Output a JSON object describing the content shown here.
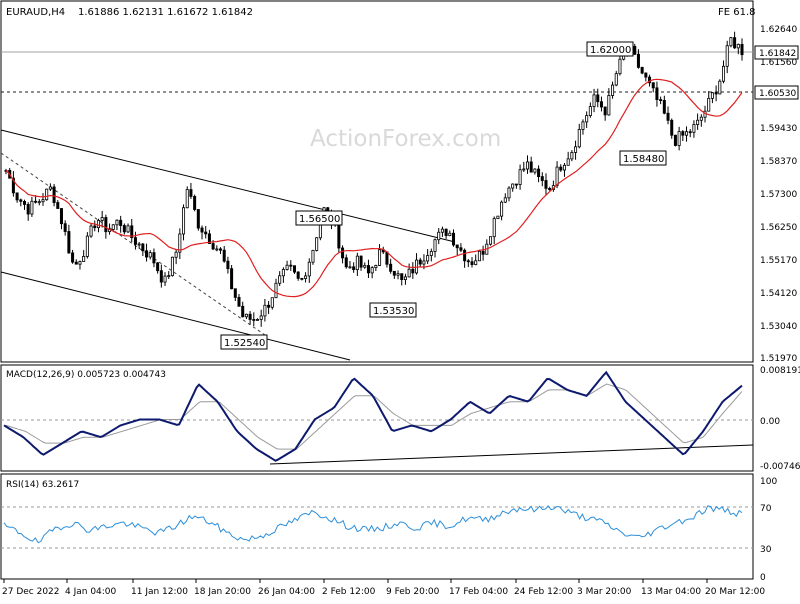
{
  "header": {
    "symbol": "EURAUD,H4",
    "ohlc": "1.61886 1.62131 1.61672 1.61842",
    "fe_label": "FE 61.8"
  },
  "watermark": "ActionForex.com",
  "chart_data": [
    {
      "type": "candlestick",
      "title": "EURAUD,H4",
      "ylim": [
        1.5148,
        1.6306
      ],
      "y_ticks": [
        "1.62640",
        "1.61560",
        "1.60530",
        "1.59430",
        "1.58370",
        "1.57300",
        "1.56250",
        "1.55170",
        "1.54120",
        "1.53040",
        "1.51970"
      ],
      "current_price": "1.61842",
      "horizontal_level": "1.60530",
      "annotations": [
        {
          "text": "1.62000",
          "value": 1.62
        },
        {
          "text": "1.56500",
          "value": 1.565
        },
        {
          "text": "1.53530",
          "value": 1.5353
        },
        {
          "text": "1.52540",
          "value": 1.5254
        },
        {
          "text": "1.58480",
          "value": 1.5848
        }
      ],
      "grid": false,
      "moving_average": {
        "color": "#e02020"
      },
      "close_path": [
        1.578,
        1.569,
        1.565,
        1.568,
        1.572,
        1.56,
        1.545,
        1.552,
        1.562,
        1.558,
        1.561,
        1.556,
        1.552,
        1.548,
        1.54,
        1.55,
        1.572,
        1.56,
        1.555,
        1.55,
        1.538,
        1.528,
        1.528,
        1.532,
        1.54,
        1.545,
        1.54,
        1.55,
        1.565,
        1.56,
        1.545,
        1.547,
        1.543,
        1.55,
        1.546,
        1.54,
        1.545,
        1.55,
        1.555,
        1.558,
        1.552,
        1.547,
        1.55,
        1.56,
        1.57,
        1.575,
        1.58,
        1.575,
        1.572,
        1.58,
        1.585,
        1.595,
        1.602,
        1.598,
        1.612,
        1.619,
        1.612,
        1.605,
        1.598,
        1.588,
        1.59,
        1.593,
        1.6,
        1.608,
        1.622,
        1.6184
      ]
    },
    {
      "type": "line",
      "title": "MACD(12,26,9) 0.005723 0.004743",
      "ylim": [
        -0.0082,
        0.0087
      ],
      "y_ticks": [
        "0.008191",
        "0.00",
        "-0.007466"
      ],
      "macd_path": [
        -0.001,
        -0.003,
        -0.006,
        -0.004,
        -0.002,
        -0.003,
        -0.001,
        0.0,
        0.0,
        -0.001,
        0.006,
        0.003,
        -0.002,
        -0.005,
        -0.007,
        -0.005,
        0.0,
        0.002,
        0.007,
        0.004,
        -0.002,
        -0.001,
        -0.002,
        0.0,
        0.003,
        0.001,
        0.004,
        0.003,
        0.007,
        0.005,
        0.004,
        0.008,
        0.003,
        0.0,
        -0.003,
        -0.006,
        -0.002,
        0.003,
        0.005723
      ],
      "signal_path": [
        -0.001,
        -0.002,
        -0.004,
        -0.004,
        -0.003,
        -0.003,
        -0.002,
        -0.001,
        0.0,
        0.0,
        0.003,
        0.003,
        0.0,
        -0.003,
        -0.005,
        -0.005,
        -0.002,
        0.001,
        0.004,
        0.004,
        0.001,
        -0.001,
        -0.001,
        -0.001,
        0.001,
        0.002,
        0.003,
        0.003,
        0.005,
        0.005,
        0.004,
        0.006,
        0.005,
        0.002,
        -0.001,
        -0.004,
        -0.003,
        0.001,
        0.004743
      ]
    },
    {
      "type": "line",
      "title": "RSI(14) 63.2617",
      "ylim": [
        0,
        100
      ],
      "y_ticks": [
        "100",
        "70",
        "30",
        "0"
      ],
      "rsi_path": [
        52,
        45,
        35,
        50,
        55,
        48,
        52,
        55,
        50,
        45,
        52,
        62,
        56,
        45,
        38,
        42,
        50,
        58,
        66,
        60,
        52,
        48,
        50,
        55,
        50,
        55,
        52,
        60,
        58,
        65,
        70,
        68,
        72,
        65,
        60,
        55,
        45,
        40,
        48,
        55,
        60,
        70,
        68,
        63.2617
      ],
      "current_value": "63.2617"
    }
  ],
  "x_axis": {
    "tick_labels": [
      "27 Dec 2022",
      "4 Jan 04:00",
      "11 Jan 12:00",
      "18 Jan 20:00",
      "26 Jan 04:00",
      "2 Feb 12:00",
      "9 Feb 20:00",
      "17 Feb 04:00",
      "24 Feb 12:00",
      "3 Mar 20:00",
      "13 Mar 04:00",
      "20 Mar 12:00"
    ]
  },
  "colors": {
    "candle_up": "#ffffff",
    "candle_border": "#000000",
    "macd_line": "#0d1a6e",
    "signal_line": "#9a9a9a",
    "rsi_line": "#2d8fd9",
    "ma_line": "#e02020"
  }
}
